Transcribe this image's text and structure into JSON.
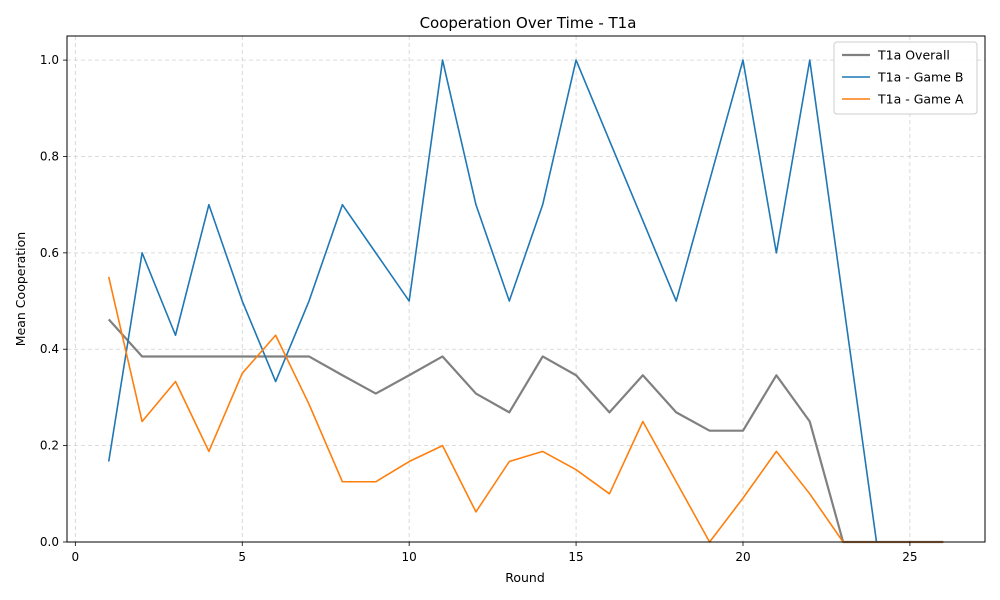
{
  "chart_data": {
    "type": "line",
    "title": "Cooperation Over Time - T1a",
    "xlabel": "Round",
    "ylabel": "Mean Cooperation",
    "xlim": [
      -0.25,
      27.25
    ],
    "ylim": [
      0,
      1.05
    ],
    "xticks": [
      0,
      5,
      10,
      15,
      20,
      25
    ],
    "yticks": [
      0.0,
      0.2,
      0.4,
      0.6,
      0.8,
      1.0
    ],
    "xtick_labels": [
      "0",
      "5",
      "10",
      "15",
      "20",
      "25"
    ],
    "ytick_labels": [
      "0.0",
      "0.2",
      "0.4",
      "0.6",
      "0.8",
      "1.0"
    ],
    "grid": true,
    "legend_position": "top-right",
    "series": [
      {
        "name": "T1a Overall",
        "color": "#808080",
        "x": [
          1,
          2,
          3,
          4,
          5,
          6,
          7,
          8,
          9,
          10,
          11,
          12,
          13,
          14,
          15,
          16,
          17,
          18,
          19,
          20,
          21,
          22,
          23,
          24,
          25,
          26
        ],
        "values": [
          0.462,
          0.385,
          0.385,
          0.385,
          0.385,
          0.385,
          0.385,
          0.346,
          0.308,
          0.346,
          0.385,
          0.308,
          0.269,
          0.385,
          0.346,
          0.269,
          0.346,
          0.269,
          0.231,
          0.231,
          0.346,
          0.25,
          0,
          0,
          0,
          0
        ]
      },
      {
        "name": "T1a - Game B",
        "color": "#1f77b4",
        "x": [
          1,
          2,
          3,
          4,
          5,
          6,
          7,
          8,
          9,
          10,
          11,
          12,
          13,
          14,
          15,
          16,
          17,
          18,
          19,
          20,
          21,
          22,
          23,
          24
        ],
        "values": [
          0.167,
          0.6,
          0.429,
          0.7,
          0.5,
          0.333,
          0.5,
          0.7,
          0.6,
          0.5,
          1.0,
          0.7,
          0.5,
          0.7,
          1.0,
          0.833,
          0.667,
          0.5,
          0.75,
          1.0,
          0.6,
          1.0,
          0.5,
          0
        ]
      },
      {
        "name": "T1a - Game A",
        "color": "#ff7f0e",
        "x": [
          1,
          2,
          3,
          4,
          5,
          6,
          7,
          8,
          9,
          10,
          11,
          12,
          13,
          14,
          15,
          16,
          17,
          18,
          19,
          20,
          21,
          22,
          23,
          24,
          25,
          26
        ],
        "values": [
          0.55,
          0.25,
          0.333,
          0.188,
          0.35,
          0.429,
          0.286,
          0.125,
          0.125,
          0.167,
          0.2,
          0.0625,
          0.167,
          0.188,
          0.15,
          0.1,
          0.25,
          0.125,
          0,
          0.091,
          0.188,
          0.1,
          0,
          0,
          0,
          0
        ]
      }
    ]
  }
}
